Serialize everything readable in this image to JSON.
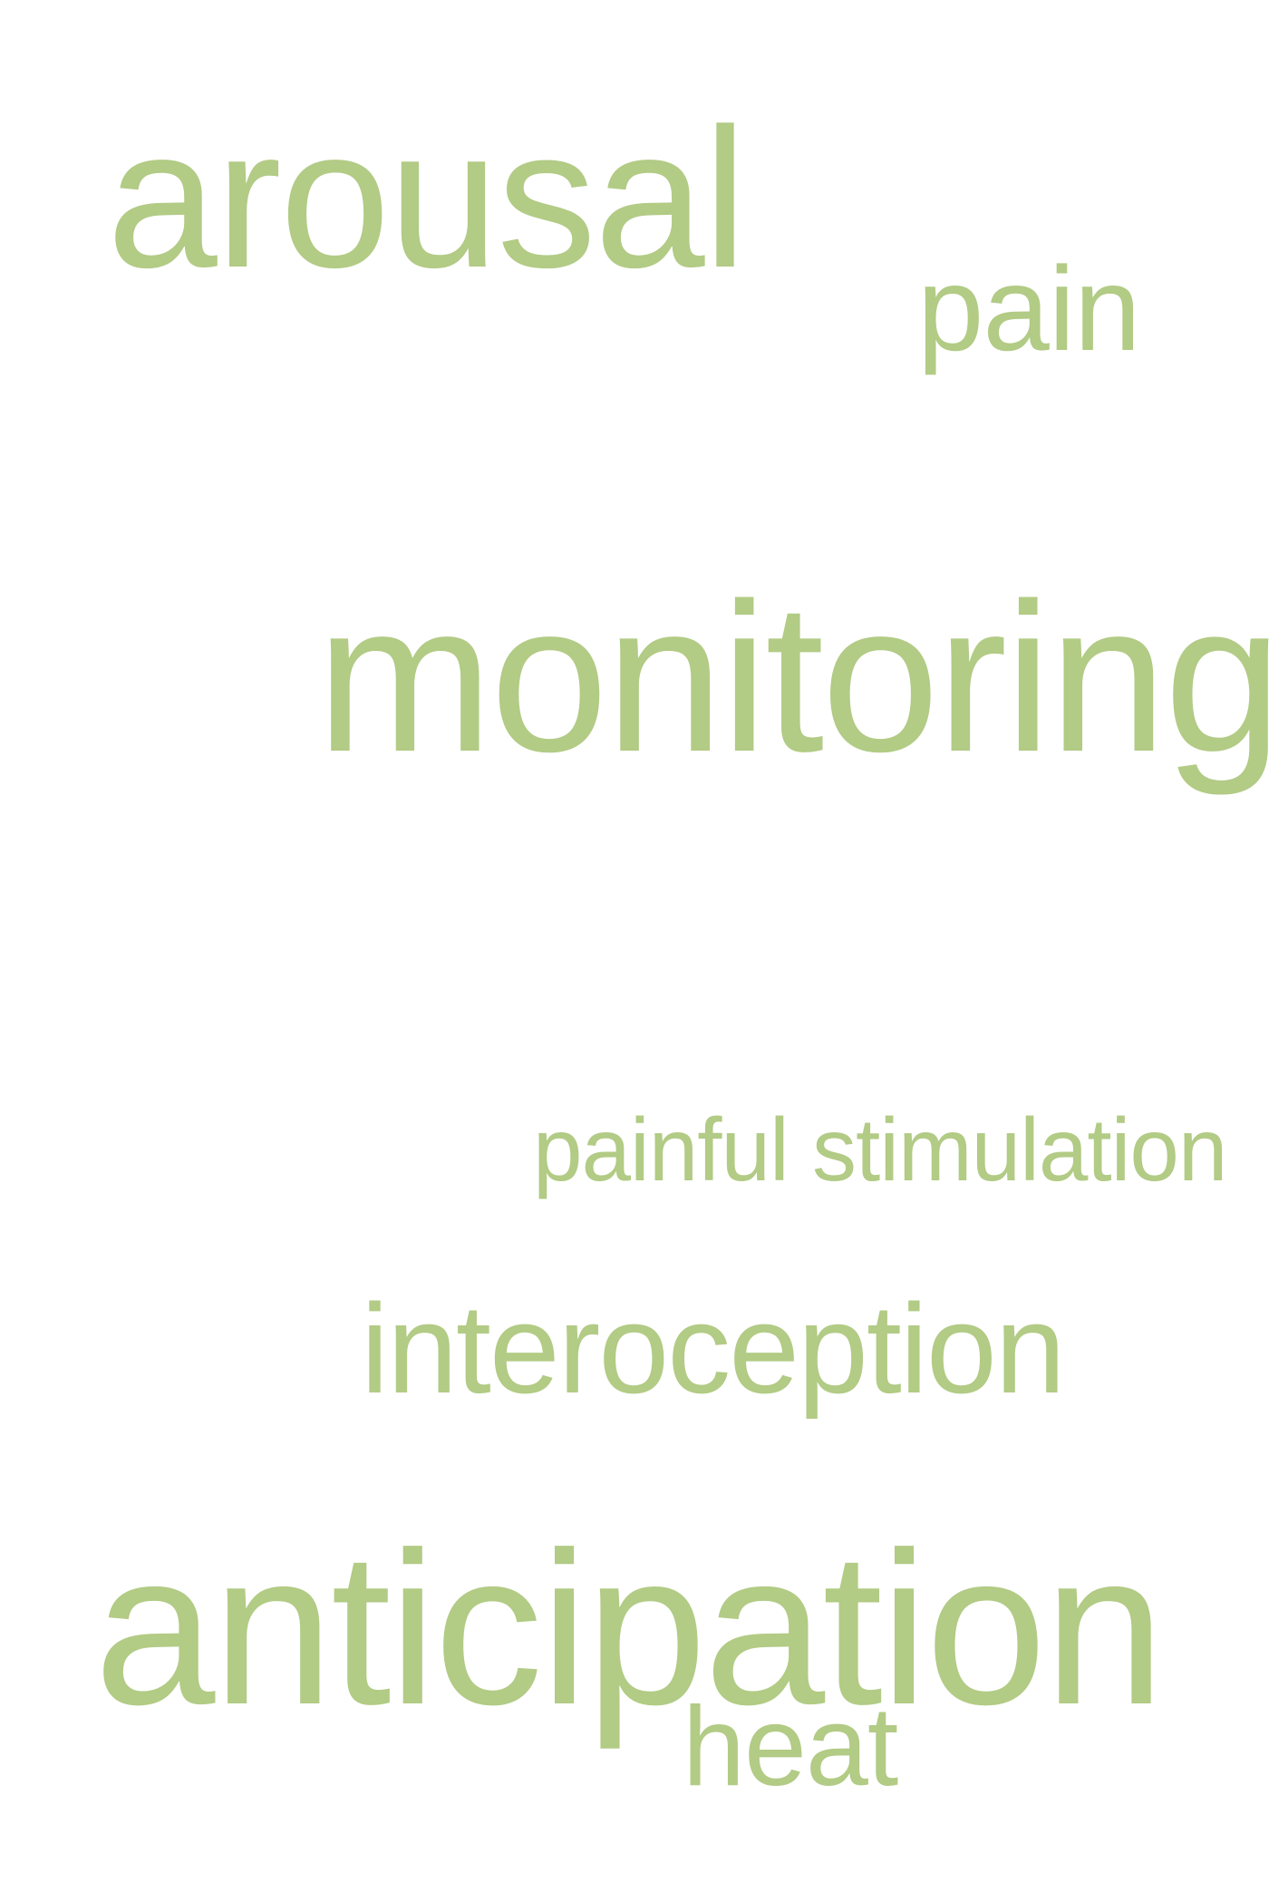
{
  "word_cloud": {
    "words": [
      {
        "id": "arousal",
        "text": "arousal"
      },
      {
        "id": "pain",
        "text": "pain"
      },
      {
        "id": "monitoring",
        "text": "monitoring"
      },
      {
        "id": "painful_stimulation",
        "text": "painful stimulation"
      },
      {
        "id": "interoception",
        "text": "interoception"
      },
      {
        "id": "anticipation",
        "text": "anticipation"
      },
      {
        "id": "heat",
        "text": "heat"
      }
    ],
    "word_color": "#b2cb85",
    "background_color": "#ffffff"
  }
}
